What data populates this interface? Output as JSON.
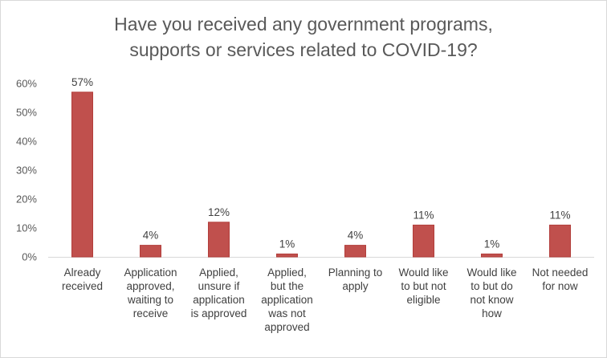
{
  "chart_data": {
    "type": "bar",
    "title_lines": [
      "Have you received any government programs,",
      "supports or services related to COVID-19?"
    ],
    "categories": [
      [
        "Already",
        "received"
      ],
      [
        "Application",
        "approved,",
        "waiting to",
        "receive"
      ],
      [
        "Applied,",
        "unsure if",
        "application",
        "is approved"
      ],
      [
        "Applied,",
        "but the",
        "application",
        "was not",
        "approved"
      ],
      [
        "Planning to",
        "apply"
      ],
      [
        "Would like",
        "to but not",
        "eligible"
      ],
      [
        "Would like",
        "to but do",
        "not know",
        "how"
      ],
      [
        "Not needed",
        "for now"
      ]
    ],
    "values": [
      57,
      4,
      12,
      1,
      4,
      11,
      1,
      11
    ],
    "data_labels": [
      "57%",
      "4%",
      "12%",
      "1%",
      "4%",
      "11%",
      "1%",
      "11%"
    ],
    "y_ticks": [
      "0%",
      "10%",
      "20%",
      "30%",
      "40%",
      "50%",
      "60%"
    ],
    "ylim": [
      0,
      60
    ],
    "grid": false,
    "bar_color": "#c0504d",
    "bar_edge_color": "#b23e3b"
  }
}
